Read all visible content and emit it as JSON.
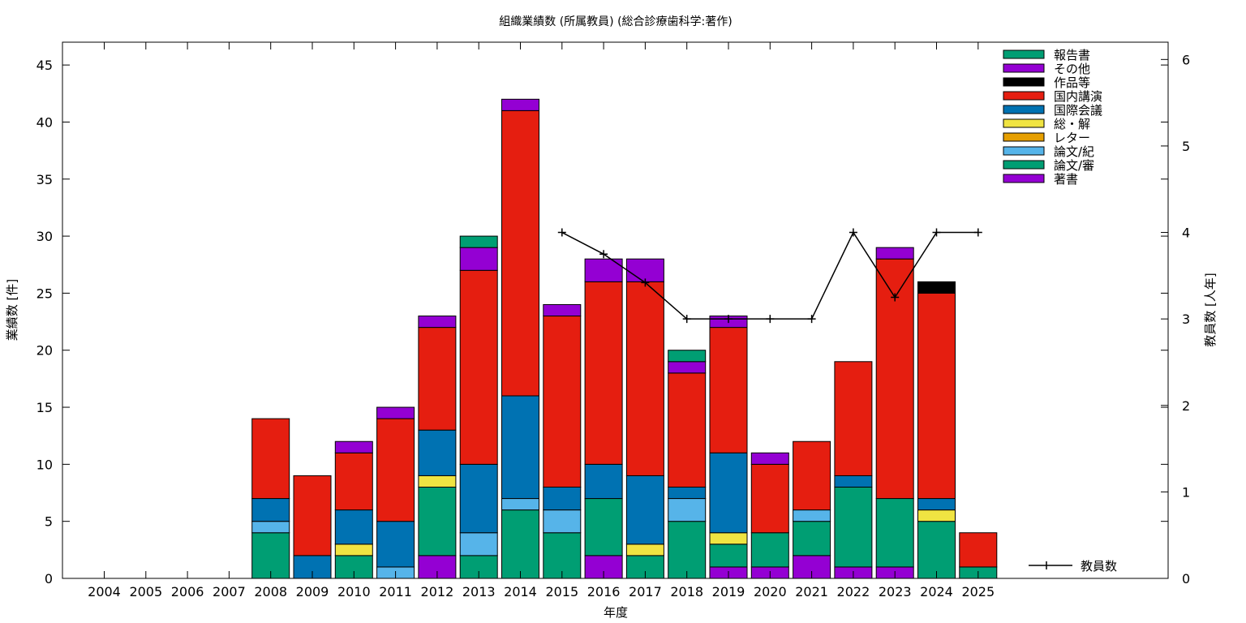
{
  "chart_data": {
    "type": "bar",
    "title": "組織業績数 (所属教員) (総合診療歯科学:著作)",
    "xlabel": "年度",
    "ylabel": "業績数 [件]",
    "y2label": "教員数 [人年]",
    "ylim": [
      0,
      47
    ],
    "y2lim": [
      0,
      6.2
    ],
    "yticks": [
      0,
      5,
      10,
      15,
      20,
      25,
      30,
      35,
      40,
      45
    ],
    "y2ticks": [
      0,
      1,
      2,
      3,
      4,
      5,
      6
    ],
    "grid": false,
    "legend_position": "top-right",
    "categories": [
      "2004",
      "2005",
      "2006",
      "2007",
      "2008",
      "2009",
      "2010",
      "2011",
      "2012",
      "2013",
      "2014",
      "2015",
      "2016",
      "2017",
      "2018",
      "2019",
      "2020",
      "2021",
      "2022",
      "2023",
      "2024",
      "2025"
    ],
    "series": [
      {
        "name": "著書",
        "color": "#9400d3",
        "values": [
          0,
          0,
          0,
          0,
          0,
          0,
          0,
          0,
          2,
          0,
          0,
          0,
          2,
          0,
          0,
          1,
          1,
          2,
          1,
          1,
          0,
          0
        ]
      },
      {
        "name": "論文/審",
        "color": "#009e73",
        "values": [
          0,
          0,
          0,
          0,
          4,
          0,
          2,
          0,
          6,
          2,
          6,
          4,
          5,
          2,
          5,
          2,
          3,
          3,
          7,
          6,
          5,
          1
        ]
      },
      {
        "name": "論文/紀",
        "color": "#56b4e9",
        "values": [
          0,
          0,
          0,
          0,
          1,
          0,
          0,
          1,
          0,
          2,
          1,
          2,
          0,
          0,
          2,
          0,
          0,
          1,
          0,
          0,
          0,
          0
        ]
      },
      {
        "name": "レター",
        "color": "#e69f00",
        "values": [
          0,
          0,
          0,
          0,
          0,
          0,
          0,
          0,
          0,
          0,
          0,
          0,
          0,
          0,
          0,
          0,
          0,
          0,
          0,
          0,
          0,
          0
        ]
      },
      {
        "name": "総・解",
        "color": "#f0e442",
        "values": [
          0,
          0,
          0,
          0,
          0,
          0,
          1,
          0,
          1,
          0,
          0,
          0,
          0,
          1,
          0,
          1,
          0,
          0,
          0,
          0,
          1,
          0
        ]
      },
      {
        "name": "国際会議",
        "color": "#0072b2",
        "values": [
          0,
          0,
          0,
          0,
          2,
          2,
          3,
          4,
          4,
          6,
          9,
          2,
          3,
          6,
          1,
          7,
          0,
          0,
          1,
          0,
          1,
          0
        ]
      },
      {
        "name": "国内講演",
        "color": "#e51e10",
        "values": [
          0,
          0,
          0,
          0,
          7,
          7,
          5,
          9,
          9,
          17,
          25,
          15,
          16,
          17,
          10,
          11,
          6,
          6,
          10,
          21,
          18,
          3
        ]
      },
      {
        "name": "作品等",
        "color": "#000000",
        "values": [
          0,
          0,
          0,
          0,
          0,
          0,
          0,
          0,
          0,
          0,
          0,
          0,
          0,
          0,
          0,
          0,
          0,
          0,
          0,
          0,
          1,
          0
        ]
      },
      {
        "name": "その他",
        "color": "#9400d3",
        "values": [
          0,
          0,
          0,
          0,
          0,
          0,
          1,
          1,
          1,
          2,
          1,
          1,
          2,
          2,
          1,
          1,
          1,
          0,
          0,
          1,
          0,
          0
        ]
      },
      {
        "name": "報告書",
        "color": "#009e73",
        "values": [
          0,
          0,
          0,
          0,
          0,
          0,
          0,
          0,
          0,
          1,
          0,
          0,
          0,
          0,
          1,
          0,
          0,
          0,
          0,
          0,
          0,
          0
        ]
      }
    ],
    "legend_order": [
      "報告書",
      "その他",
      "作品等",
      "国内講演",
      "国際会議",
      "総・解",
      "レター",
      "論文/紀",
      "論文/審",
      "著書"
    ],
    "line_series": {
      "name": "教員数",
      "color": "#000000",
      "axis": "y2",
      "x": [
        "2015",
        "2016",
        "2017",
        "2018",
        "2019",
        "2020",
        "2021",
        "2022",
        "2023",
        "2024",
        "2025"
      ],
      "values": [
        4,
        3.75,
        3.42,
        3,
        3,
        3,
        3,
        4,
        3.25,
        4,
        4
      ]
    }
  }
}
